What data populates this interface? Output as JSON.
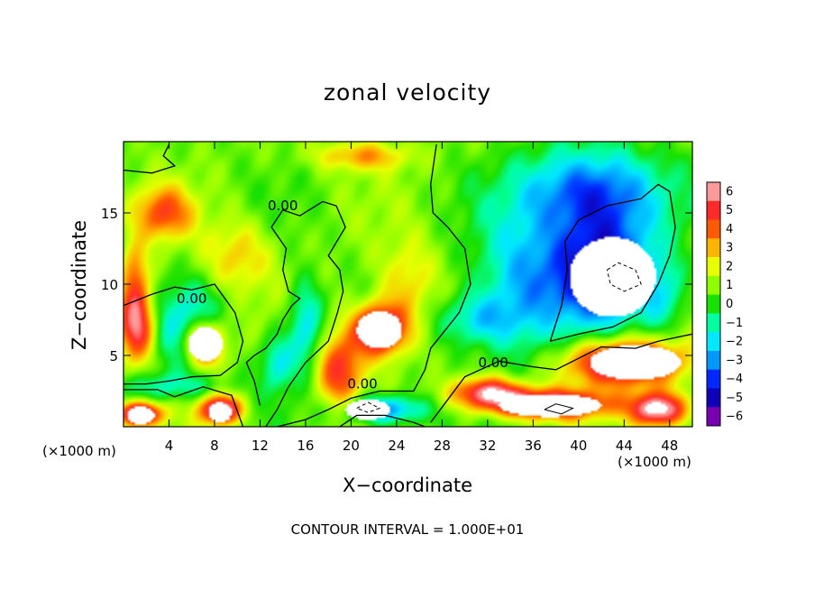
{
  "chart_data": {
    "type": "heatmap",
    "title": "zonal velocity",
    "xlabel": "X−coordinate",
    "ylabel": "Z−coordinate",
    "x_unit_left": "(×1000 m)",
    "x_unit_right": "(×1000 m)",
    "contour_interval": "CONTOUR INTERVAL = 1.000E+01",
    "xlim": [
      0,
      50
    ],
    "ylim": [
      0,
      20
    ],
    "x_ticks": [
      4,
      8,
      12,
      16,
      20,
      24,
      28,
      32,
      36,
      40,
      44,
      48
    ],
    "x_tick_labels": [
      "4",
      "8",
      "12",
      "16",
      "20",
      "24",
      "28",
      "32",
      "36",
      "40",
      "44",
      "48"
    ],
    "y_ticks": [
      5,
      10,
      15
    ],
    "y_tick_labels": [
      "5",
      "10",
      "15"
    ],
    "colorbar": {
      "levels": [
        6,
        5,
        4,
        3,
        2,
        1,
        0,
        -1,
        -2,
        -3,
        -4,
        -5,
        -6
      ],
      "labels": [
        "6",
        "5",
        "4",
        "3",
        "2",
        "1",
        "0",
        "−1",
        "−2",
        "−3",
        "−4",
        "−5",
        "−6"
      ],
      "colors": [
        "#ff9a9a",
        "#ff2a2a",
        "#ff5a00",
        "#ffb400",
        "#e8ff00",
        "#90ff00",
        "#18e000",
        "#00ffa0",
        "#00e8ff",
        "#0098ff",
        "#0028ff",
        "#1000b8",
        "#7800b0"
      ]
    },
    "contour_labels": [
      {
        "text": "0.00",
        "x": 14.0,
        "y": 15.5
      },
      {
        "text": "0.00",
        "x": 6.0,
        "y": 9.0
      },
      {
        "text": "0.00",
        "x": 21.0,
        "y": 3.0
      },
      {
        "text": "0.00",
        "x": 32.5,
        "y": 4.5
      }
    ],
    "features": [
      {
        "v": 6.5,
        "x": 7.0,
        "y": 5.8,
        "rx": 2.0,
        "ry": 1.8
      },
      {
        "v": 6.5,
        "x": 22.5,
        "y": 6.8,
        "rx": 2.4,
        "ry": 1.8
      },
      {
        "v": 6.5,
        "x": 8.5,
        "y": 1.2,
        "rx": 1.8,
        "ry": 1.0
      },
      {
        "v": 6.5,
        "x": 1.5,
        "y": 0.9,
        "rx": 1.8,
        "ry": 0.8
      },
      {
        "v": 6.5,
        "x": 44.0,
        "y": 4.5,
        "rx": 5.0,
        "ry": 1.6
      },
      {
        "v": 6.5,
        "x": 37.0,
        "y": 1.6,
        "rx": 5.5,
        "ry": 1.0
      },
      {
        "v": 6.5,
        "x": 47.0,
        "y": 1.2,
        "rx": 2.5,
        "ry": 1.2
      },
      {
        "v": 5.2,
        "x": 1.2,
        "y": 7.0,
        "rx": 1.6,
        "ry": 2.5
      },
      {
        "v": 5.0,
        "x": 32.0,
        "y": 2.5,
        "rx": 3.0,
        "ry": 1.0
      },
      {
        "v": 4.2,
        "x": 19.0,
        "y": 4.0,
        "rx": 2.0,
        "ry": 2.5
      },
      {
        "v": 3.5,
        "x": 3.5,
        "y": 15.0,
        "rx": 2.5,
        "ry": 1.8
      },
      {
        "v": 3.0,
        "x": 1.0,
        "y": 10.5,
        "rx": 1.2,
        "ry": 2.5
      },
      {
        "v": 2.5,
        "x": 21.0,
        "y": 19.0,
        "rx": 4.0,
        "ry": 1.0
      },
      {
        "v": 2.0,
        "x": 25.0,
        "y": 10.0,
        "rx": 2.5,
        "ry": 3.0
      },
      {
        "v": 2.0,
        "x": 10.0,
        "y": 12.0,
        "rx": 3.0,
        "ry": 2.5
      },
      {
        "v": -3.5,
        "x": 6.0,
        "y": 6.5,
        "rx": 3.0,
        "ry": 3.0
      },
      {
        "v": -3.0,
        "x": 16.0,
        "y": 7.0,
        "rx": 1.5,
        "ry": 3.0
      },
      {
        "v": -2.5,
        "x": 13.5,
        "y": 4.5,
        "rx": 1.5,
        "ry": 2.0
      },
      {
        "v": -4.0,
        "x": 23.0,
        "y": 1.2,
        "rx": 3.5,
        "ry": 1.0
      },
      {
        "v": -4.5,
        "x": 41.0,
        "y": 16.5,
        "rx": 6.0,
        "ry": 3.0
      },
      {
        "v": -6.0,
        "x": 42.0,
        "y": 11.0,
        "rx": 4.5,
        "ry": 3.8
      },
      {
        "v": -3.0,
        "x": 35.0,
        "y": 10.0,
        "rx": 4.0,
        "ry": 5.0
      },
      {
        "v": -2.5,
        "x": 31.0,
        "y": 7.5,
        "rx": 3.5,
        "ry": 1.8
      },
      {
        "v": -2.0,
        "x": 47.5,
        "y": 9.0,
        "rx": 2.0,
        "ry": 2.5
      },
      {
        "v": -1.8,
        "x": 3.5,
        "y": 2.8,
        "rx": 4.5,
        "ry": 1.0
      }
    ],
    "saturated_regions": [
      {
        "sign": 1,
        "x": 7.2,
        "y": 5.8,
        "rx": 1.5,
        "ry": 1.2
      },
      {
        "sign": 1,
        "x": 22.5,
        "y": 6.8,
        "rx": 2.0,
        "ry": 1.3
      },
      {
        "sign": 1,
        "x": 8.5,
        "y": 1.0,
        "rx": 1.0,
        "ry": 0.7
      },
      {
        "sign": 1,
        "x": 1.5,
        "y": 0.8,
        "rx": 1.2,
        "ry": 0.6
      },
      {
        "sign": 1,
        "x": 45.0,
        "y": 4.5,
        "rx": 4.0,
        "ry": 1.2
      },
      {
        "sign": 1,
        "x": 37.5,
        "y": 1.5,
        "rx": 4.5,
        "ry": 0.8
      },
      {
        "sign": 1,
        "x": 21.5,
        "y": 1.2,
        "rx": 2.0,
        "ry": 0.7
      },
      {
        "sign": -1,
        "x": 43.0,
        "y": 10.5,
        "rx": 3.8,
        "ry": 2.8
      }
    ],
    "zero_contours": [
      [
        [
          0,
          18.0
        ],
        [
          2.5,
          17.8
        ],
        [
          4.5,
          18.3
        ],
        [
          3.5,
          19.0
        ],
        [
          4.0,
          19.8
        ]
      ],
      [
        [
          0,
          8.5
        ],
        [
          2.5,
          9.3
        ],
        [
          4.5,
          9.8
        ],
        [
          6.0,
          9.6
        ],
        [
          8.0,
          10.0
        ],
        [
          9.8,
          8.0
        ],
        [
          10.5,
          6.0
        ],
        [
          10.0,
          4.5
        ],
        [
          8.5,
          3.6
        ],
        [
          6.0,
          3.5
        ],
        [
          4.0,
          3.2
        ],
        [
          2.0,
          3.0
        ],
        [
          0,
          3.0
        ]
      ],
      [
        [
          0,
          2.6
        ],
        [
          3.0,
          2.6
        ],
        [
          4.5,
          2.1
        ],
        [
          7.0,
          2.8
        ],
        [
          9.5,
          2.2
        ],
        [
          10.5,
          0
        ]
      ],
      [
        [
          12.5,
          0
        ],
        [
          13.5,
          1.2
        ],
        [
          14.5,
          2.8
        ],
        [
          16.0,
          4.5
        ],
        [
          18.0,
          6.0
        ],
        [
          18.8,
          8.0
        ],
        [
          19.3,
          9.5
        ],
        [
          19.0,
          11.0
        ],
        [
          18.0,
          12.0
        ],
        [
          19.5,
          14.0
        ],
        [
          18.7,
          15.5
        ],
        [
          17.5,
          15.8
        ],
        [
          15.5,
          14.8
        ],
        [
          14.0,
          15.2
        ],
        [
          13.0,
          14.0
        ],
        [
          14.3,
          12.5
        ],
        [
          14.0,
          11.0
        ],
        [
          14.5,
          9.5
        ],
        [
          15.5,
          9.0
        ],
        [
          14.8,
          8.5
        ],
        [
          14.0,
          7.5
        ],
        [
          13.5,
          6.5
        ],
        [
          12.5,
          5.5
        ],
        [
          11.5,
          5.0
        ],
        [
          10.8,
          4.5
        ],
        [
          11.5,
          3.2
        ],
        [
          12.0,
          1.5
        ]
      ],
      [
        [
          27.5,
          19.8
        ],
        [
          27.0,
          17.0
        ],
        [
          27.2,
          15.0
        ],
        [
          28.5,
          14.0
        ],
        [
          30.0,
          12.5
        ],
        [
          30.5,
          10.0
        ],
        [
          29.5,
          8.0
        ],
        [
          28.0,
          6.5
        ],
        [
          27.0,
          5.5
        ],
        [
          26.5,
          4.0
        ],
        [
          25.5,
          2.5
        ],
        [
          22.5,
          2.5
        ],
        [
          20.0,
          2.0
        ],
        [
          18.0,
          1.2
        ],
        [
          16.0,
          0.5
        ],
        [
          13.5,
          0
        ]
      ],
      [
        [
          27.0,
          0.3
        ],
        [
          30.0,
          3.5
        ],
        [
          33.0,
          4.6
        ],
        [
          36.0,
          4.2
        ],
        [
          38.0,
          4.0
        ],
        [
          40.0,
          4.8
        ],
        [
          42.0,
          5.6
        ],
        [
          45.0,
          5.5
        ],
        [
          47.0,
          6.0
        ],
        [
          50.0,
          6.5
        ]
      ],
      [
        [
          37.5,
          6.0
        ],
        [
          38.5,
          8.5
        ],
        [
          39.0,
          11.0
        ],
        [
          38.8,
          13.0
        ],
        [
          40.0,
          14.5
        ],
        [
          42.5,
          15.5
        ],
        [
          45.5,
          16.0
        ],
        [
          47.0,
          17.0
        ],
        [
          48.0,
          16.5
        ],
        [
          48.5,
          14.0
        ],
        [
          48.0,
          12.0
        ],
        [
          47.0,
          10.0
        ],
        [
          45.5,
          8.0
        ],
        [
          43.0,
          7.0
        ],
        [
          40.0,
          6.5
        ],
        [
          37.5,
          6.0
        ]
      ],
      [
        [
          19.0,
          0
        ],
        [
          20.5,
          0.8
        ],
        [
          23.0,
          0.8
        ],
        [
          25.5,
          0.3
        ],
        [
          26.5,
          0
        ]
      ]
    ],
    "dashed_contours": [
      [
        [
          42.5,
          11.0
        ],
        [
          43.5,
          11.5
        ],
        [
          45.0,
          11.0
        ],
        [
          45.5,
          10.0
        ],
        [
          44.0,
          9.5
        ],
        [
          42.8,
          10.0
        ],
        [
          42.5,
          11.0
        ]
      ],
      [
        [
          20.5,
          1.3
        ],
        [
          21.5,
          1.7
        ],
        [
          22.5,
          1.3
        ],
        [
          21.5,
          1.0
        ],
        [
          20.5,
          1.3
        ]
      ]
    ],
    "solid_small_contours": [
      [
        [
          37.0,
          1.2
        ],
        [
          38.0,
          1.6
        ],
        [
          39.5,
          1.3
        ],
        [
          38.5,
          0.9
        ],
        [
          37.0,
          1.2
        ]
      ]
    ]
  }
}
